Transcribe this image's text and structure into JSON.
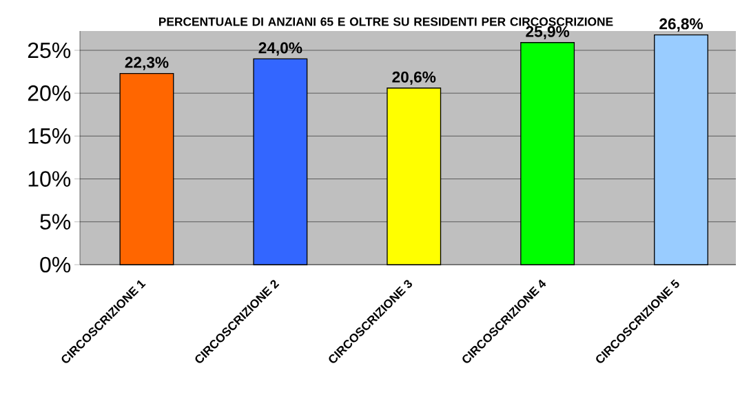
{
  "chart_data": {
    "type": "bar",
    "title": "PERCENTUALE DI ANZIANI 65 E OLTRE SU RESIDENTI PER CIRCOSCRIZIONE",
    "categories": [
      "CIRCOSCRIZIONE 1",
      "CIRCOSCRIZIONE 2",
      "CIRCOSCRIZIONE 3",
      "CIRCOSCRIZIONE 4",
      "CIRCOSCRIZIONE 5"
    ],
    "values": [
      22.3,
      24.0,
      20.6,
      25.9,
      26.8
    ],
    "colors": [
      "#ff6600",
      "#3366ff",
      "#ffff00",
      "#00ff00",
      "#99ccff"
    ],
    "value_labels": [
      "22,3%",
      "24,0%",
      "20,6%",
      "25,9%",
      "26,8%"
    ],
    "ylim": [
      0,
      27.25
    ],
    "yticks": [
      {
        "value": 0,
        "label": "0%"
      },
      {
        "value": 5,
        "label": "5%"
      },
      {
        "value": 10,
        "label": "10%"
      },
      {
        "value": 15,
        "label": "15%"
      },
      {
        "value": 20,
        "label": "20%"
      },
      {
        "value": 25,
        "label": "25%"
      }
    ],
    "grid": "y"
  }
}
